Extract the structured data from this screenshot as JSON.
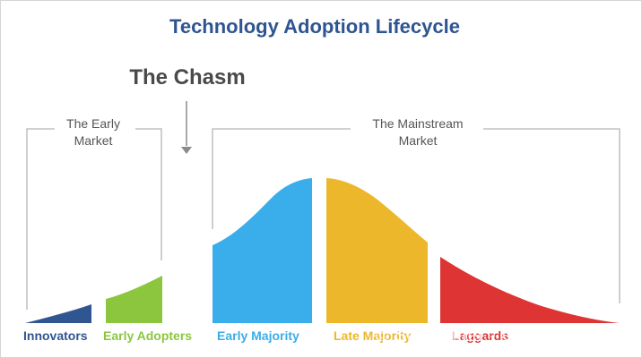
{
  "title": "Technology Adoption Lifecycle",
  "chasm_label": "The Chasm",
  "early_market": {
    "line1": "The Early",
    "line2": "Market"
  },
  "mainstream_market": {
    "line1": "The Mainstream",
    "line2": "Market"
  },
  "segments": [
    {
      "label": "Innovators",
      "color": "#2f5690"
    },
    {
      "label": "Early Adopters",
      "color": "#8cc63f"
    },
    {
      "label": "Early Majority",
      "color": "#3aaeea"
    },
    {
      "label": "Late Majority",
      "color": "#ecb72b"
    },
    {
      "label": "Laggards",
      "color": "#de3434"
    }
  ],
  "watermark": "© Sanjjjhuter - Crypto..."
}
